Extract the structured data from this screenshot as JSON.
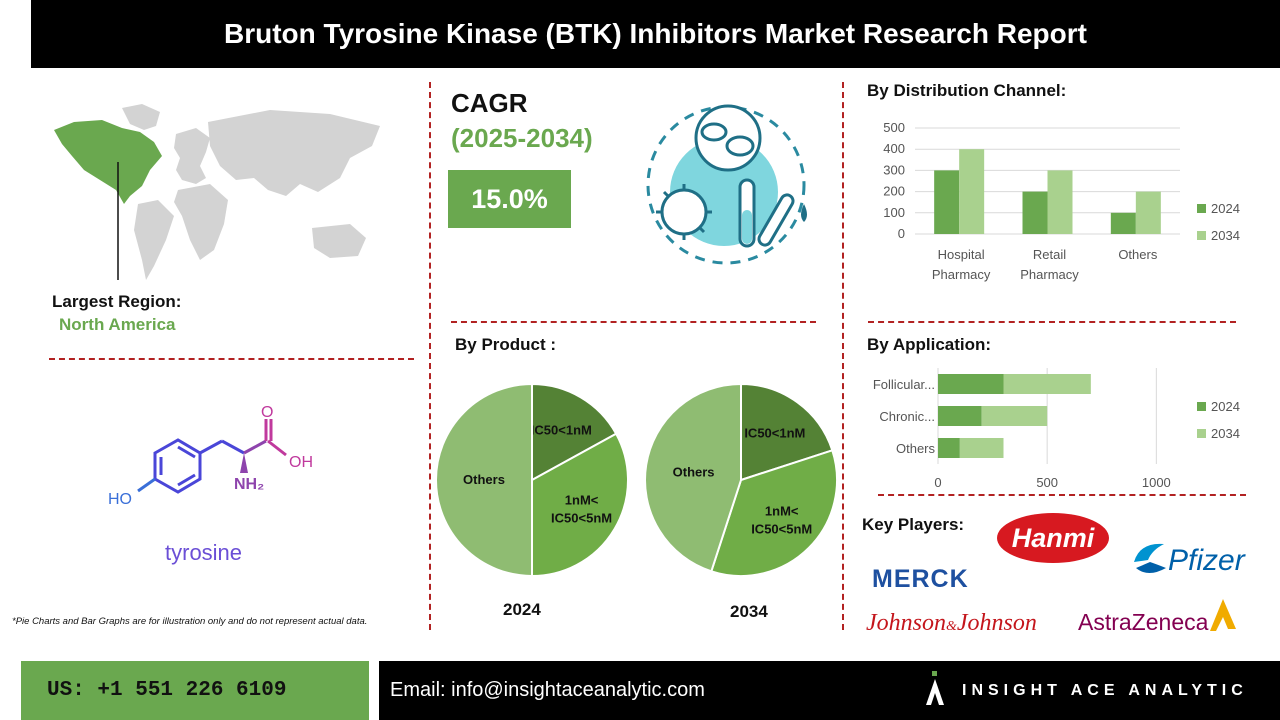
{
  "header": {
    "title": "Bruton Tyrosine Kinase (BTK) Inhibitors Market Research Report"
  },
  "cagr": {
    "label": "CAGR",
    "years": "(2025-2034)",
    "value": "15.0%"
  },
  "region": {
    "label": "Largest Region:",
    "value": "North America"
  },
  "molecule": {
    "name": "tyrosine",
    "ho": "HO",
    "oh": "OH",
    "o": "O",
    "nh2": "NH₂"
  },
  "distribution": {
    "title": "By Distribution Channel:",
    "chart_data": {
      "type": "bar",
      "categories": [
        "Hospital Pharmacy",
        "Retail Pharmacy",
        "Others"
      ],
      "category_lines": [
        [
          "Hospital",
          "Pharmacy"
        ],
        [
          "Retail",
          "Pharmacy"
        ],
        [
          "Others"
        ]
      ],
      "series": [
        {
          "name": "2024",
          "values": [
            300,
            200,
            100
          ]
        },
        {
          "name": "2034",
          "values": [
            400,
            300,
            200
          ]
        }
      ],
      "ylim": [
        0,
        500
      ],
      "yticks": [
        "0",
        "100",
        "200",
        "300",
        "400",
        "500"
      ],
      "grid": true,
      "legend": "right"
    }
  },
  "product": {
    "title": "By Product :",
    "chart_data": [
      {
        "type": "pie",
        "year": "2024",
        "labels": [
          "IC50<1nM",
          "1nM<IC50<5nM",
          "Others"
        ],
        "values": [
          17,
          33,
          50
        ]
      },
      {
        "type": "pie",
        "year": "2034",
        "labels": [
          "IC50<1nM",
          "1nM<IC50<5nM",
          "Others"
        ],
        "values": [
          20,
          35,
          45
        ]
      }
    ]
  },
  "application": {
    "title": "By Application:",
    "chart_data": {
      "type": "bar",
      "orientation": "horizontal",
      "stacked": true,
      "categories": [
        "Follicular...",
        "Chronic...",
        "Others"
      ],
      "series": [
        {
          "name": "2024",
          "values": [
            300,
            200,
            100
          ]
        },
        {
          "name": "2034",
          "values": [
            400,
            300,
            200
          ]
        }
      ],
      "xlim": [
        0,
        1200
      ],
      "xticks": [
        "0",
        "500",
        "1000"
      ],
      "grid": true,
      "legend": "right"
    }
  },
  "key_players": {
    "title": "Key Players:",
    "logos": [
      "Hanmi",
      "Pfizer",
      "MERCK",
      "Johnson&Johnson",
      "AstraZeneca"
    ],
    "jnj_left": "Johnson",
    "jnj_amp": "&",
    "jnj_right": "Johnson"
  },
  "note": "*Pie Charts and Bar Graphs are for illustration only and do not represent actual data.",
  "footer": {
    "phone": "US: +1 551 226 6109",
    "email": "Email: info@insightaceanalytic.com",
    "brand": "INSIGHT ACE ANALYTIC"
  },
  "colors": {
    "green_dark": "#6aa84f",
    "green_light": "#a9d18e",
    "green_mid": "#70ad47",
    "green_deep": "#548235",
    "others_pie": "#8fbc72",
    "divider": "#b22222"
  }
}
